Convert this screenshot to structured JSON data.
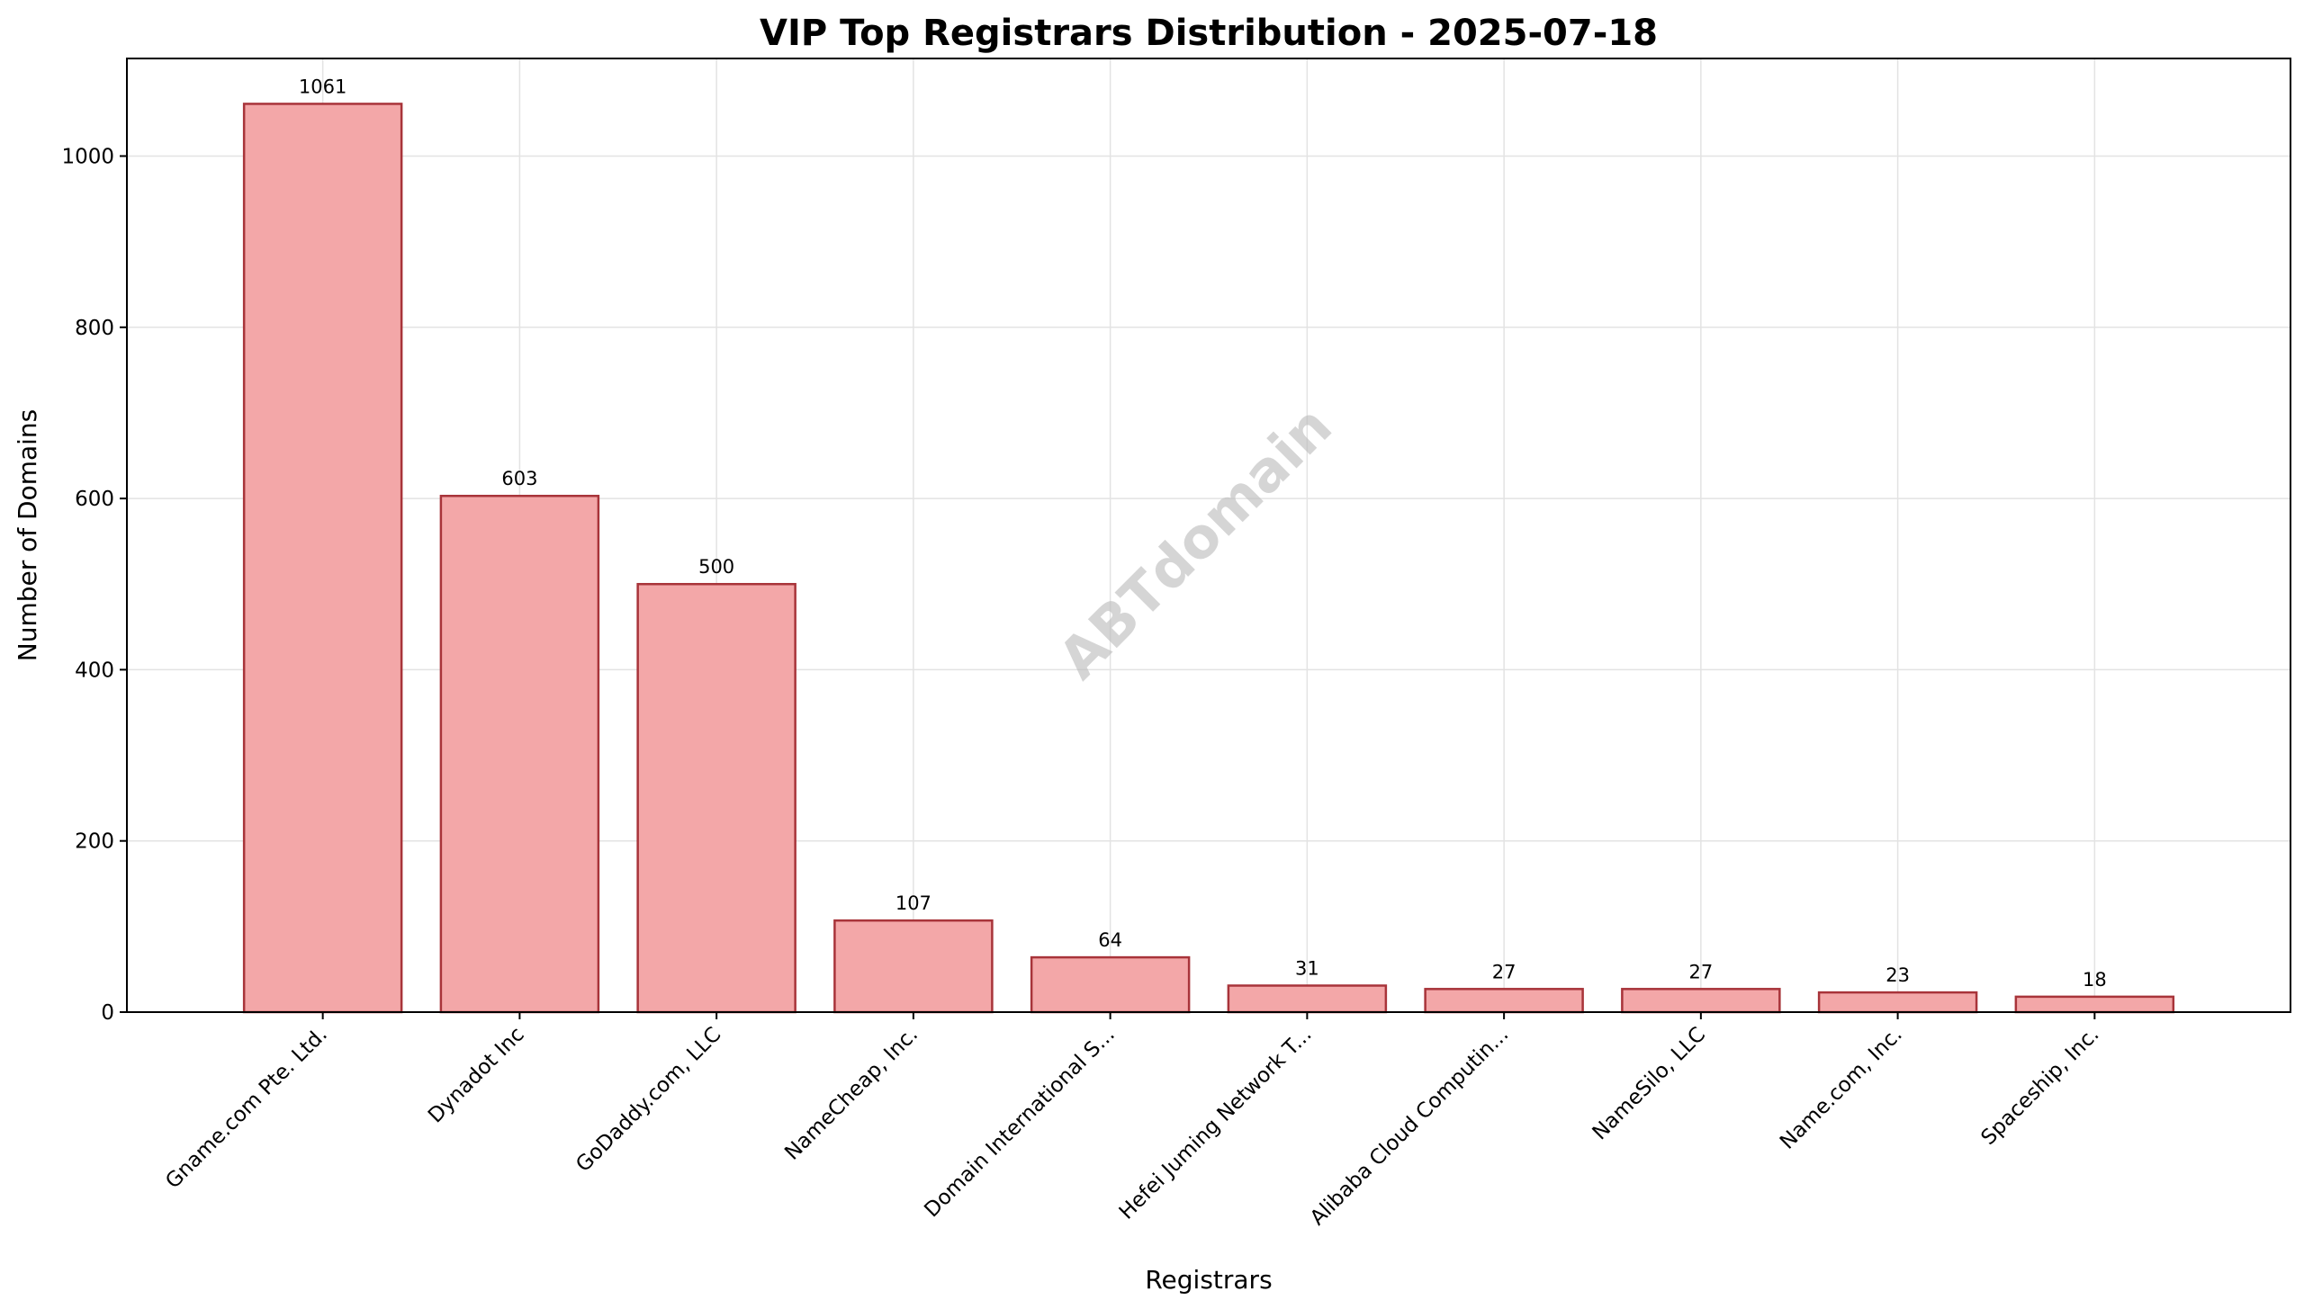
{
  "chart_data": {
    "type": "bar",
    "title": "VIP Top Registrars Distribution - 2025-07-18",
    "xlabel": "Registrars",
    "ylabel": "Number of Domains",
    "categories": [
      "Gname.com Pte. Ltd.",
      "Dynadot Inc",
      "GoDaddy.com, LLC",
      "NameCheap, Inc.",
      "Domain International S...",
      "Hefei Juming Network T...",
      "Alibaba Cloud Computin...",
      "NameSilo, LLC",
      "Name.com, Inc.",
      "Spaceship, Inc."
    ],
    "values": [
      1061,
      603,
      500,
      107,
      64,
      31,
      27,
      27,
      23,
      18
    ],
    "ylim": [
      0,
      1114
    ],
    "yticks": [
      0,
      200,
      400,
      600,
      800,
      1000
    ],
    "grid": true,
    "watermark": "ABTdomain",
    "colors": {
      "bar_fill": "#f3a7a8",
      "bar_edge": "#a8343a",
      "grid": "#e3e3e3",
      "watermark": "#b9b9b9"
    }
  }
}
